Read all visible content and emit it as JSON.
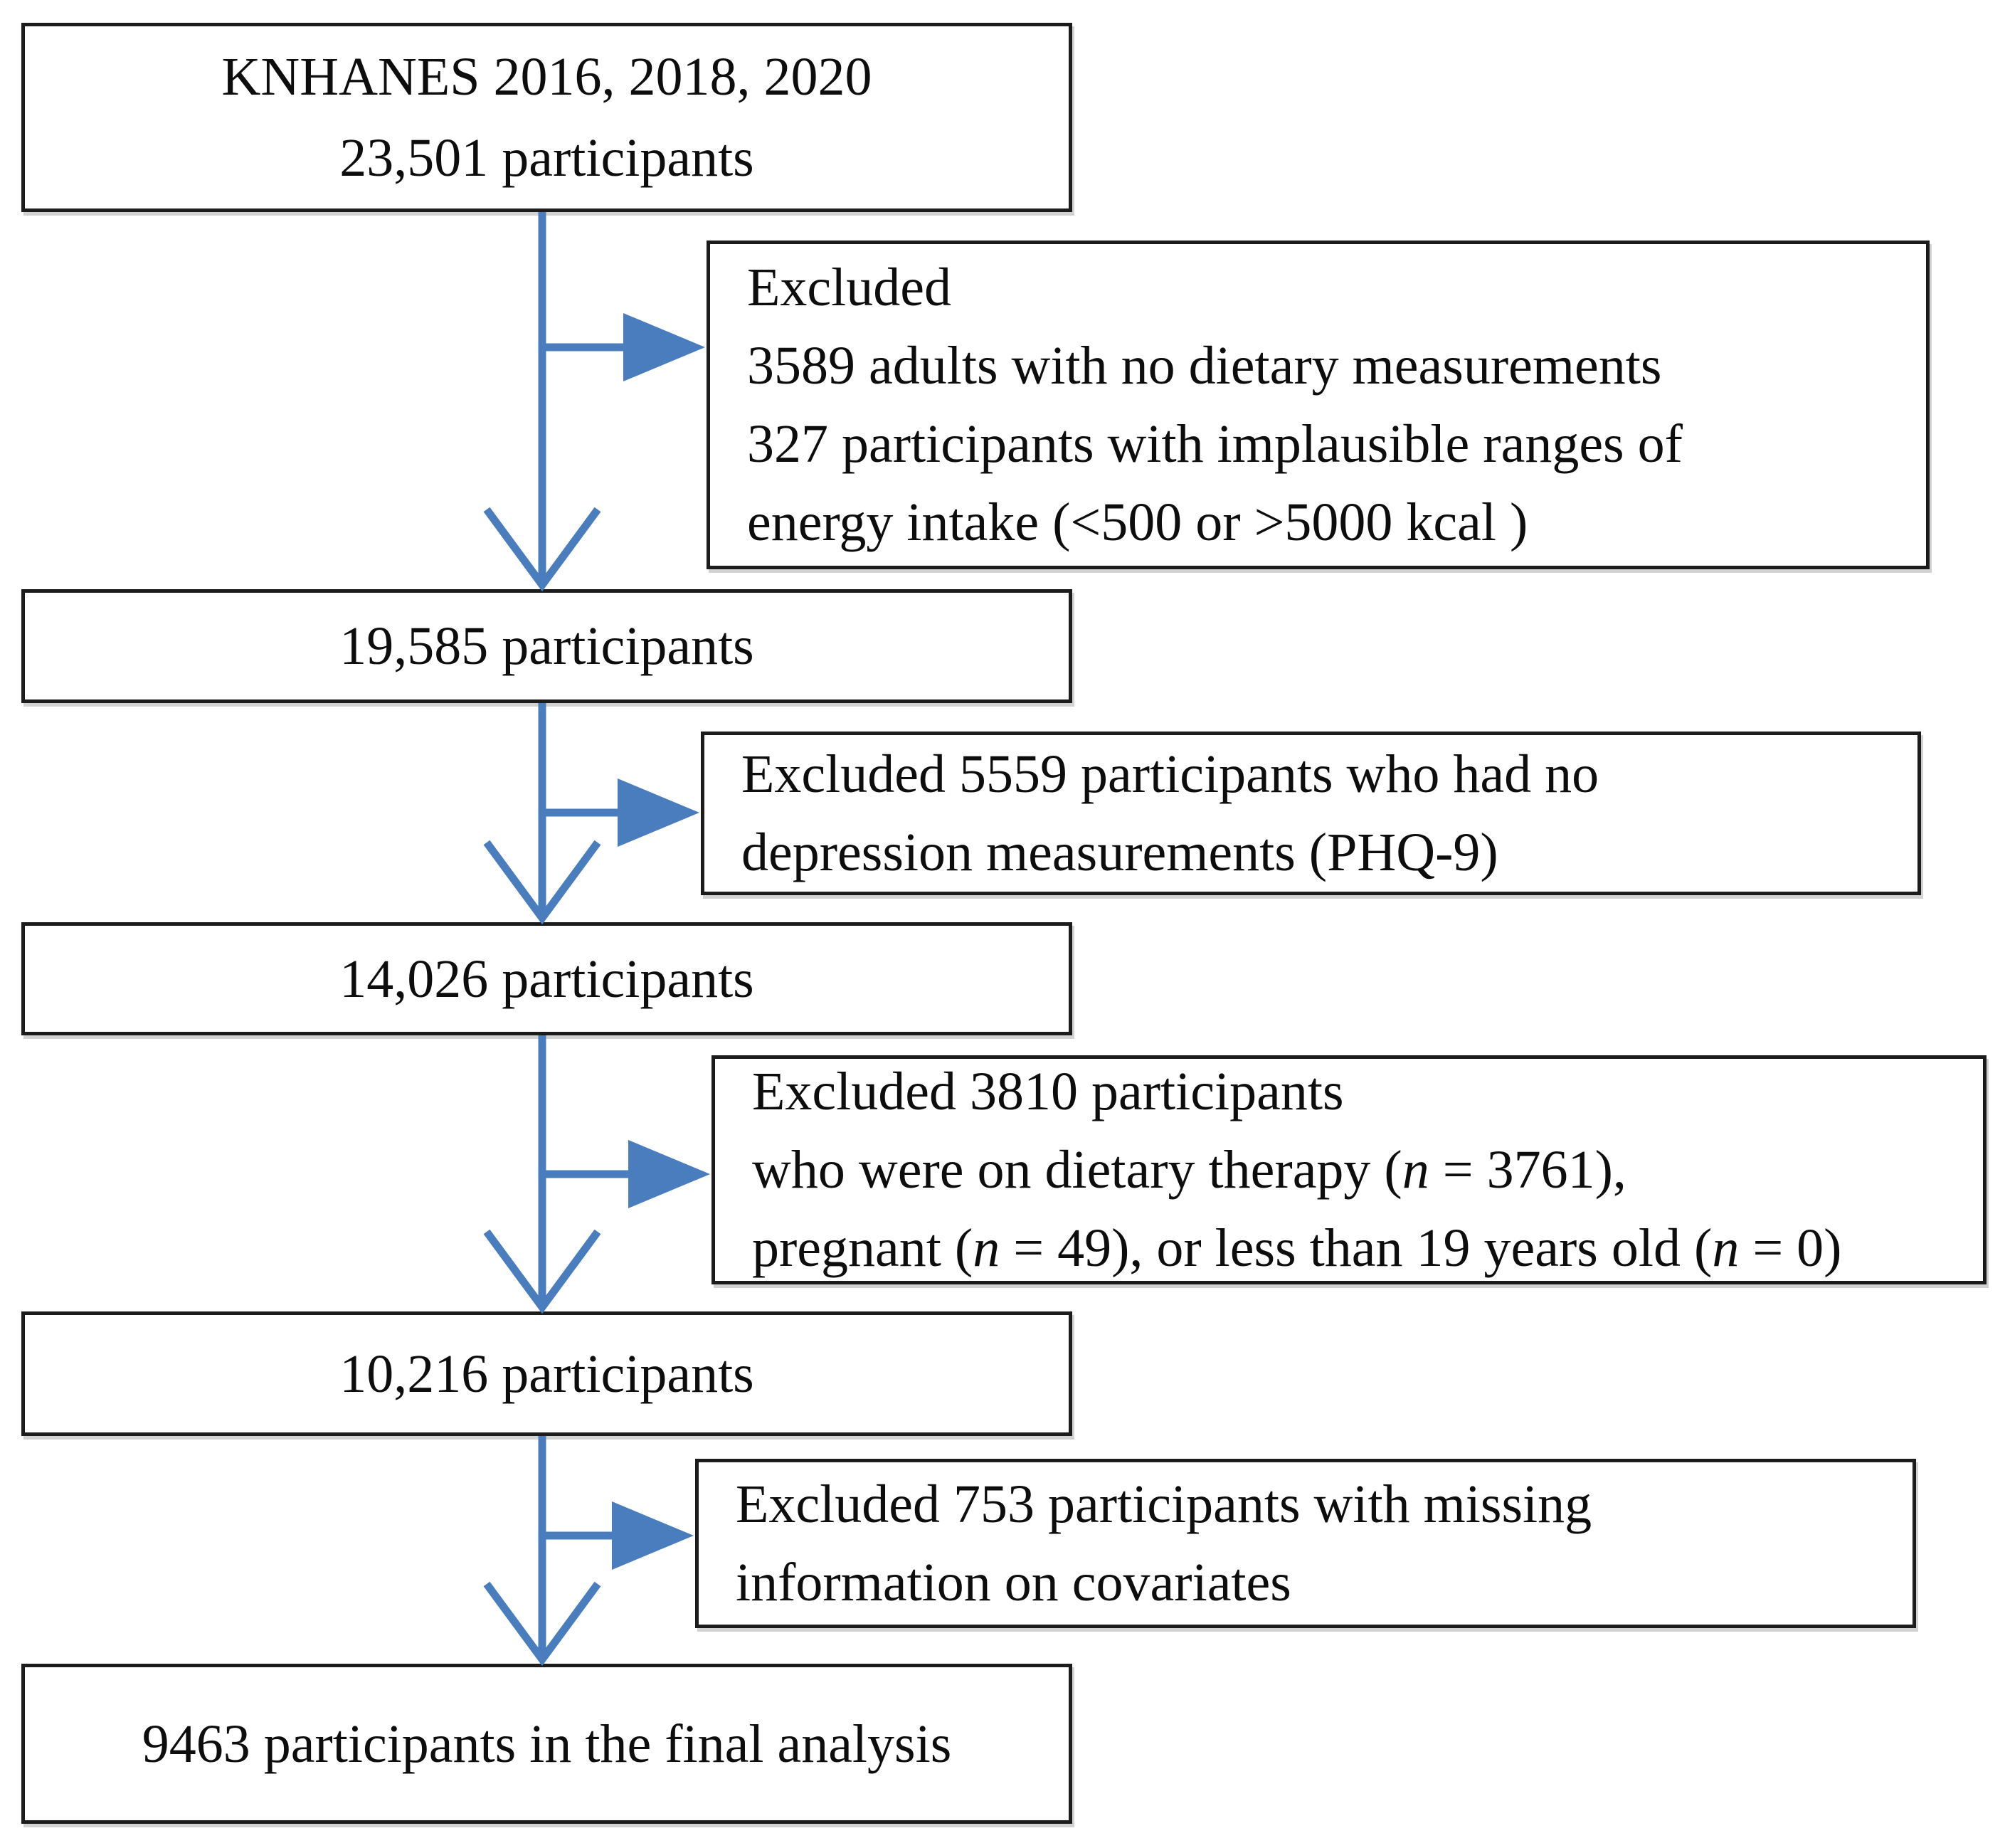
{
  "flow": {
    "initial": {
      "lines": [
        "KNHANES 2016, 2018, 2020",
        "23,501 participants"
      ]
    },
    "exclusion1": {
      "lines": [
        "Excluded",
        "3589 adults with no dietary measurements",
        "327 participants with implausible ranges of",
        "energy intake (<500 or >5000 kcal )"
      ]
    },
    "step2": {
      "lines": [
        "19,585 participants"
      ]
    },
    "exclusion2": {
      "lines": [
        "Excluded 5559 participants who had no",
        "depression measurements (PHQ-9)"
      ]
    },
    "step3": {
      "lines": [
        "14,026 participants"
      ]
    },
    "exclusion3": {
      "lines": [
        "Excluded 3810 participants",
        "who were on dietary therapy (n = 3761),",
        "pregnant (n = 49), or less than 19 years old (n = 0)"
      ]
    },
    "step4": {
      "lines": [
        "10,216 participants"
      ]
    },
    "exclusion4": {
      "lines": [
        "Excluded 753 participants with missing",
        "information on covariates"
      ]
    },
    "final": {
      "lines": [
        "9463 participants in the final analysis"
      ]
    }
  },
  "colors": {
    "arrow_blue": "#4a7dbd",
    "box_border": "#1c1c1c",
    "text": "#0d0d0d"
  }
}
